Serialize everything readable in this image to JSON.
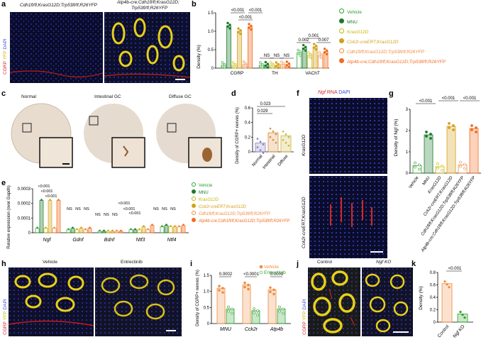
{
  "panel_letters": [
    "a",
    "b",
    "c",
    "d",
    "e",
    "f",
    "g",
    "h",
    "i",
    "j",
    "k"
  ],
  "colors": {
    "vehicle": "#2ca02c",
    "mnu": "#1b7a2a",
    "kras": "#c8b400",
    "cck2r": "#d4a017",
    "cdh1": "#f08a3c",
    "atp4b": "#f26b1d",
    "red": "#d62728",
    "yellow": "#e8d01a",
    "blue": "#3a4bd8"
  },
  "a": {
    "left_title": "Cdh1fl/fl;KrasG12D;Trp53fl/fl;R26YFP",
    "right_title_1": "Atp4b-cre;Cdh1fl/fl;KrasG12D;",
    "right_title_2": "Trp53fl/fl;R26YFP",
    "stain": [
      "CGRP",
      "YFP",
      "DAPI"
    ]
  },
  "legend_b": [
    "Vehicle",
    "MNU",
    "KrasG12D",
    "Cck2r-creERT;KrasG12D",
    "Cdh1fl/fl;KrasG12D;Trp53fl/fl;R26YFP",
    "Atp4b-cre;Cdh1fl/fl;KrasG12D;Trp53fl/fl;R26YFP"
  ],
  "chart_data": [
    {
      "panel": "b",
      "type": "bar",
      "ylabel": "Density (%)",
      "ylim": [
        0,
        1.5
      ],
      "yticks": [
        "0",
        "0.5",
        "1.0",
        "1.5"
      ],
      "categories": [
        "CGRP",
        "TH",
        "VAChT"
      ],
      "series": [
        {
          "name": "Vehicle",
          "values": [
            0.08,
            0.08,
            0.42
          ]
        },
        {
          "name": "MNU",
          "values": [
            1.15,
            0.09,
            0.55
          ]
        },
        {
          "name": "KrasG12D",
          "values": [
            0.08,
            0.08,
            0.35
          ]
        },
        {
          "name": "Cck2r-creERT;KrasG12D",
          "values": [
            1.0,
            0.08,
            0.58
          ]
        },
        {
          "name": "Cdh1fl/fl;KrasG12D;Trp53fl/fl;R26YFP",
          "values": [
            0.1,
            0.1,
            0.35
          ]
        },
        {
          "name": "Atp4b-cre;Cdh1fl/fl;KrasG12D;Trp53fl/fl;R26YFP",
          "values": [
            1.12,
            0.1,
            0.45
          ]
        }
      ],
      "annotations": [
        "<0.001",
        "<0.001",
        "<0.001",
        "NS",
        "NS",
        "NS",
        "0.002",
        "0.001",
        "0.007"
      ]
    },
    {
      "panel": "d",
      "type": "bar",
      "ylabel": "Density of CGRP+ nerves (%)",
      "ylim": [
        0,
        0.6
      ],
      "yticks": [
        "0",
        "0.2",
        "0.4",
        "0.6"
      ],
      "categories": [
        "Normal",
        "Intestinal",
        "Diffuse"
      ],
      "values": [
        0.12,
        0.26,
        0.22
      ],
      "annotations": [
        "0.029",
        "0.023"
      ]
    },
    {
      "panel": "e",
      "type": "bar",
      "ylabel": "Relative expression (over Gapdh)",
      "ylim": [
        0,
        0.0003
      ],
      "yticks": [
        "0",
        "0.0001",
        "0.0002",
        "0.0003"
      ],
      "categories": [
        "Ngf",
        "Gdnf",
        "Bdnf",
        "Ntf3",
        "Ntf4"
      ],
      "series": [
        {
          "name": "Vehicle",
          "values": [
            3e-05,
            2e-05,
            1e-05,
            2e-05,
            4e-05
          ]
        },
        {
          "name": "MNU",
          "values": [
            0.00022,
            3e-05,
            1e-05,
            2e-05,
            5e-05
          ]
        },
        {
          "name": "KrasG12D",
          "values": [
            3e-05,
            2e-05,
            1e-05,
            2e-05,
            4e-05
          ]
        },
        {
          "name": "Cck2r-creERT;KrasG12D",
          "values": [
            0.00022,
            3e-05,
            1e-05,
            4e-05,
            4e-05
          ]
        },
        {
          "name": "Cdh1fl/fl;KrasG12D;Trp53fl/fl;R26YFP",
          "values": [
            3e-05,
            2e-05,
            1e-05,
            2e-05,
            4e-05
          ]
        },
        {
          "name": "Atp4b-cre;Cdh1fl/fl;KrasG12D;Trp53fl/fl;R26YFP",
          "values": [
            0.00022,
            3e-05,
            1e-05,
            5e-05,
            5e-05
          ]
        }
      ],
      "annotations": [
        "<0.001",
        "<0.001",
        "<0.001",
        "NS",
        "NS",
        "NS",
        "NS",
        "NS",
        "NS",
        "<0.001",
        "<0.001",
        "<0.001",
        "NS",
        "NS",
        "NS"
      ]
    },
    {
      "panel": "g",
      "type": "bar",
      "ylabel": "Density of Ngf (%)",
      "ylim": [
        0,
        3
      ],
      "yticks": [
        "0",
        "1",
        "2",
        "3"
      ],
      "categories": [
        "Vehicle",
        "MNU",
        "KrasG12D",
        "Cck2r-creERT;KrasG12D",
        "Cdh1fl/fl;KrasG12D;Trp53fl/fl;R26YFP",
        "Atp4b-cre;Cdh1fl/fl;KrasG12D;Trp53fl/fl;R26YFP"
      ],
      "values": [
        0.35,
        1.8,
        0.3,
        2.2,
        0.38,
        2.1
      ],
      "annotations": [
        "<0.001",
        "<0.001",
        "<0.001"
      ]
    },
    {
      "panel": "i",
      "type": "bar",
      "ylabel": "Density of CGRP+ nerves (%)",
      "ylim": [
        0,
        1.5
      ],
      "yticks": [
        "0",
        "0.5",
        "1.0",
        "1.5"
      ],
      "categories": [
        "MNU",
        "Cck2r",
        "Atp4b"
      ],
      "series": [
        {
          "name": "Vehicle",
          "values": [
            1.1,
            1.2,
            1.05
          ]
        },
        {
          "name": "Entrectinib",
          "values": [
            0.45,
            0.4,
            0.45
          ]
        }
      ],
      "annotations": [
        "0.0002",
        "<0.0001",
        "0.0009"
      ]
    },
    {
      "panel": "k",
      "type": "bar",
      "ylabel": "Density (%)",
      "ylim": [
        0,
        0.8
      ],
      "yticks": [
        "0",
        "0.2",
        "0.4",
        "0.6",
        "0.8"
      ],
      "categories": [
        "Control",
        "Ngf KO"
      ],
      "values": [
        0.62,
        0.13
      ],
      "annotations": [
        "<0.001"
      ]
    }
  ],
  "c": {
    "titles": [
      "Normal",
      "Intestinal GC",
      "Diffuse GC"
    ]
  },
  "f": {
    "title_ngf": "Ngf",
    "title_rna": "RNA",
    "title_dapi": "DAPI",
    "label_top": "KrasG12D",
    "label_bottom": "Cck2r-creERT;KrasG12D"
  },
  "h": {
    "titles": [
      "Vehicle",
      "Entrectinib"
    ],
    "stain": [
      "CGRP",
      "YFP",
      "DAPI"
    ]
  },
  "i_legend": [
    "Vehicle",
    "Entrectinib"
  ],
  "j": {
    "titles": [
      "Control",
      "Ngf KO"
    ],
    "stain": [
      "CGRP",
      "YFP",
      "DAPI"
    ]
  }
}
